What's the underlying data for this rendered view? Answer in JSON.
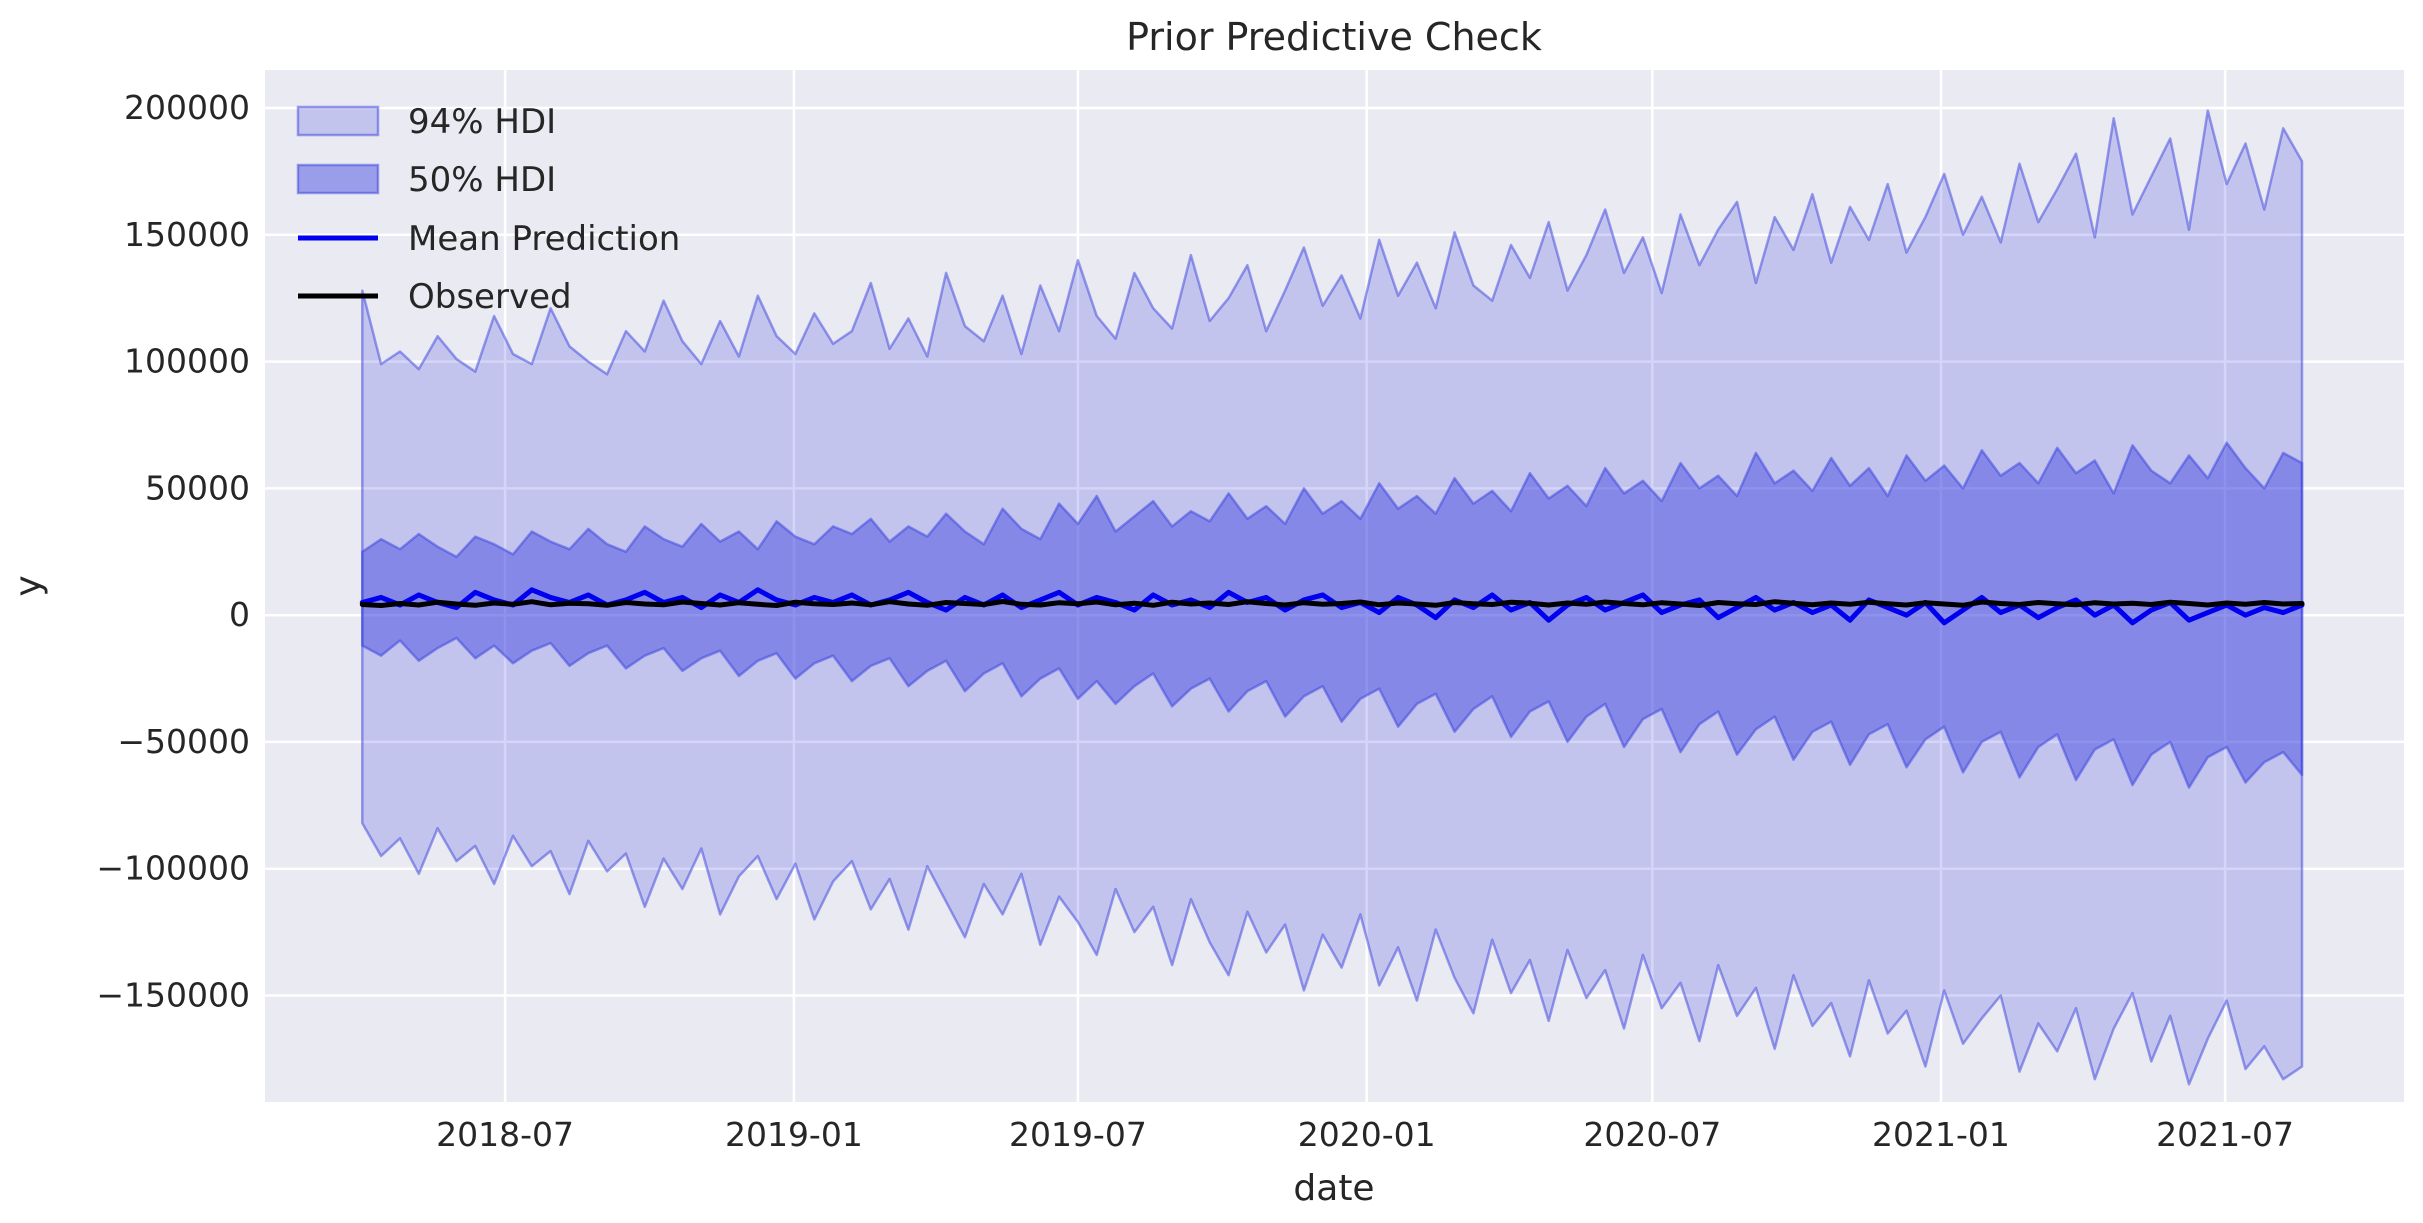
{
  "figure": {
    "background": "#ffffff"
  },
  "chart_data": {
    "type": "area",
    "title": "Prior Predictive Check",
    "xlabel": "date",
    "ylabel": "y",
    "grid": true,
    "legend_position": "upper left",
    "legend": [
      "94% HDI",
      "50% HDI",
      "Mean Prediction",
      "Observed"
    ],
    "x_unit": "days since 2018-04-01",
    "x_start_day": 0,
    "x_step_days": 12,
    "xlim": [
      -62,
      1301
    ],
    "ylim": [
      -192000,
      215000
    ],
    "x_ticks": [
      {
        "day": 91,
        "label": "2018-07"
      },
      {
        "day": 275,
        "label": "2019-01"
      },
      {
        "day": 456,
        "label": "2019-07"
      },
      {
        "day": 640,
        "label": "2020-01"
      },
      {
        "day": 822,
        "label": "2020-07"
      },
      {
        "day": 1006,
        "label": "2021-01"
      },
      {
        "day": 1187,
        "label": "2021-07"
      }
    ],
    "y_ticks": [
      {
        "value": 200000,
        "label": "200000"
      },
      {
        "value": 150000,
        "label": "150000"
      },
      {
        "value": 100000,
        "label": "100000"
      },
      {
        "value": 50000,
        "label": "50000"
      },
      {
        "value": 0,
        "label": "0"
      },
      {
        "value": -50000,
        "label": "−50000"
      },
      {
        "value": -100000,
        "label": "−100000"
      },
      {
        "value": -150000,
        "label": "−150000"
      }
    ],
    "colors": {
      "figure_bg": "#ffffff",
      "plot_bg": "#eaeaf2",
      "grid": "#ffffff",
      "hdi_base": "#3a41dd",
      "hdi94_opacity": 0.22,
      "hdi50_opacity": 0.45,
      "band_edge_opacity": 0.5,
      "mean": "#0000ee",
      "observed": "#000000",
      "text": "#262626"
    },
    "series": [
      {
        "name": "94% HDI upper",
        "values": [
          128000,
          99000,
          104000,
          97000,
          110000,
          101000,
          96000,
          118000,
          103000,
          99000,
          121000,
          106000,
          100000,
          95000,
          112000,
          104000,
          124000,
          108000,
          99000,
          116000,
          102000,
          126000,
          110000,
          103000,
          119000,
          107000,
          112000,
          131000,
          105000,
          117000,
          102000,
          135000,
          114000,
          108000,
          126000,
          103000,
          130000,
          112000,
          140000,
          118000,
          109000,
          135000,
          121000,
          113000,
          142000,
          116000,
          125000,
          138000,
          112000,
          128000,
          145000,
          122000,
          134000,
          117000,
          148000,
          126000,
          139000,
          121000,
          151000,
          130000,
          124000,
          146000,
          133000,
          155000,
          128000,
          142000,
          160000,
          135000,
          149000,
          127000,
          158000,
          138000,
          152000,
          163000,
          131000,
          157000,
          144000,
          166000,
          139000,
          161000,
          148000,
          170000,
          143000,
          157000,
          174000,
          150000,
          165000,
          147000,
          178000,
          155000,
          168000,
          182000,
          149000,
          196000,
          158000,
          173000,
          188000,
          152000,
          199000,
          170000,
          186000,
          160000,
          192000,
          179000
        ]
      },
      {
        "name": "94% HDI lower",
        "values": [
          -82000,
          -95000,
          -88000,
          -102000,
          -84000,
          -97000,
          -91000,
          -106000,
          -87000,
          -99000,
          -93000,
          -110000,
          -89000,
          -101000,
          -94000,
          -115000,
          -96000,
          -108000,
          -92000,
          -118000,
          -103000,
          -95000,
          -112000,
          -98000,
          -120000,
          -105000,
          -97000,
          -116000,
          -104000,
          -124000,
          -99000,
          -113000,
          -127000,
          -106000,
          -118000,
          -102000,
          -130000,
          -111000,
          -121000,
          -134000,
          -108000,
          -125000,
          -115000,
          -138000,
          -112000,
          -129000,
          -142000,
          -117000,
          -133000,
          -122000,
          -148000,
          -126000,
          -139000,
          -118000,
          -146000,
          -131000,
          -152000,
          -124000,
          -143000,
          -157000,
          -128000,
          -149000,
          -136000,
          -160000,
          -132000,
          -151000,
          -140000,
          -163000,
          -134000,
          -155000,
          -145000,
          -168000,
          -138000,
          -158000,
          -147000,
          -171000,
          -142000,
          -162000,
          -153000,
          -174000,
          -144000,
          -165000,
          -156000,
          -178000,
          -148000,
          -169000,
          -159000,
          -150000,
          -180000,
          -161000,
          -172000,
          -155000,
          -183000,
          -163000,
          -149000,
          -176000,
          -158000,
          -185000,
          -167000,
          -152000,
          -179000,
          -170000,
          -183000,
          -178000
        ]
      },
      {
        "name": "50% HDI upper",
        "values": [
          25000,
          30000,
          26000,
          32000,
          27000,
          23000,
          31000,
          28000,
          24000,
          33000,
          29000,
          26000,
          34000,
          28000,
          25000,
          35000,
          30000,
          27000,
          36000,
          29000,
          33000,
          26000,
          37000,
          31000,
          28000,
          35000,
          32000,
          38000,
          29000,
          35000,
          31000,
          40000,
          33000,
          28000,
          42000,
          34000,
          30000,
          44000,
          36000,
          47000,
          33000,
          39000,
          45000,
          35000,
          41000,
          37000,
          48000,
          38000,
          43000,
          36000,
          50000,
          40000,
          45000,
          38000,
          52000,
          42000,
          47000,
          40000,
          54000,
          44000,
          49000,
          41000,
          56000,
          46000,
          51000,
          43000,
          58000,
          48000,
          53000,
          45000,
          60000,
          50000,
          55000,
          47000,
          64000,
          52000,
          57000,
          49000,
          62000,
          51000,
          58000,
          47000,
          63000,
          53000,
          59000,
          50000,
          65000,
          55000,
          60000,
          52000,
          66000,
          56000,
          61000,
          48000,
          67000,
          57000,
          52000,
          63000,
          54000,
          68000,
          58000,
          50000,
          64000,
          60000
        ]
      },
      {
        "name": "50% HDI lower",
        "values": [
          -12000,
          -16000,
          -10000,
          -18000,
          -13000,
          -9000,
          -17000,
          -12000,
          -19000,
          -14000,
          -11000,
          -20000,
          -15000,
          -12000,
          -21000,
          -16000,
          -13000,
          -22000,
          -17000,
          -14000,
          -24000,
          -18000,
          -15000,
          -25000,
          -19000,
          -16000,
          -26000,
          -20000,
          -17000,
          -28000,
          -22000,
          -18000,
          -30000,
          -23000,
          -19000,
          -32000,
          -25000,
          -21000,
          -33000,
          -26000,
          -35000,
          -28000,
          -23000,
          -36000,
          -29000,
          -25000,
          -38000,
          -30000,
          -26000,
          -40000,
          -32000,
          -28000,
          -42000,
          -33000,
          -29000,
          -44000,
          -35000,
          -31000,
          -46000,
          -37000,
          -32000,
          -48000,
          -38000,
          -34000,
          -50000,
          -40000,
          -35000,
          -52000,
          -41000,
          -37000,
          -54000,
          -43000,
          -38000,
          -55000,
          -45000,
          -40000,
          -57000,
          -46000,
          -42000,
          -59000,
          -47000,
          -43000,
          -60000,
          -49000,
          -44000,
          -62000,
          -50000,
          -46000,
          -64000,
          -52000,
          -47000,
          -65000,
          -53000,
          -49000,
          -67000,
          -55000,
          -50000,
          -68000,
          -56000,
          -52000,
          -66000,
          -58000,
          -54000,
          -63000
        ]
      },
      {
        "name": "Mean Prediction",
        "values": [
          5000,
          7000,
          4000,
          8000,
          5000,
          3000,
          9000,
          6000,
          4000,
          10000,
          7000,
          5000,
          8000,
          4000,
          6000,
          9000,
          5000,
          7000,
          3000,
          8000,
          5000,
          10000,
          6000,
          4000,
          7000,
          5000,
          8000,
          4000,
          6000,
          9000,
          5000,
          2000,
          7000,
          4000,
          8000,
          3000,
          6000,
          9000,
          4000,
          7000,
          5000,
          2000,
          8000,
          4000,
          6000,
          3000,
          9000,
          5000,
          7000,
          2000,
          6000,
          8000,
          3000,
          5000,
          1000,
          7000,
          4000,
          -1000,
          6000,
          3000,
          8000,
          2000,
          5000,
          -2000,
          4000,
          7000,
          2000,
          5000,
          8000,
          1000,
          4000,
          6000,
          -1000,
          3000,
          7000,
          2000,
          5000,
          1000,
          4000,
          -2000,
          6000,
          3000,
          0,
          5000,
          -3000,
          2000,
          7000,
          1000,
          4000,
          -1000,
          3000,
          6000,
          0,
          4000,
          -3000,
          2000,
          5000,
          -2000,
          1000,
          4000,
          0,
          3000,
          1000,
          4000
        ]
      },
      {
        "name": "Observed",
        "values": [
          4200,
          3800,
          4600,
          4000,
          5100,
          4400,
          3900,
          4800,
          4300,
          5300,
          4100,
          4700,
          4500,
          3900,
          5000,
          4400,
          4100,
          5200,
          4600,
          4000,
          4900,
          4300,
          3800,
          5100,
          4500,
          4200,
          4800,
          4100,
          5300,
          4400,
          3900,
          5000,
          4600,
          4200,
          5400,
          4300,
          4000,
          4900,
          4500,
          5200,
          4100,
          4700,
          3900,
          5100,
          4400,
          4800,
          4200,
          5300,
          4600,
          4000,
          4900,
          4300,
          4600,
          5200,
          4100,
          4800,
          4400,
          3900,
          5000,
          4500,
          4200,
          5100,
          4700,
          4000,
          4800,
          4300,
          5200,
          4600,
          4100,
          4900,
          4400,
          3800,
          5000,
          4500,
          4200,
          5300,
          4700,
          4100,
          4800,
          4300,
          5100,
          4500,
          4000,
          4900,
          4400,
          3900,
          5200,
          4600,
          4200,
          5000,
          4500,
          4100,
          4900,
          4400,
          4700,
          4200,
          5100,
          4600,
          4000,
          4800,
          4300,
          5000,
          4400,
          4600
        ]
      }
    ]
  }
}
